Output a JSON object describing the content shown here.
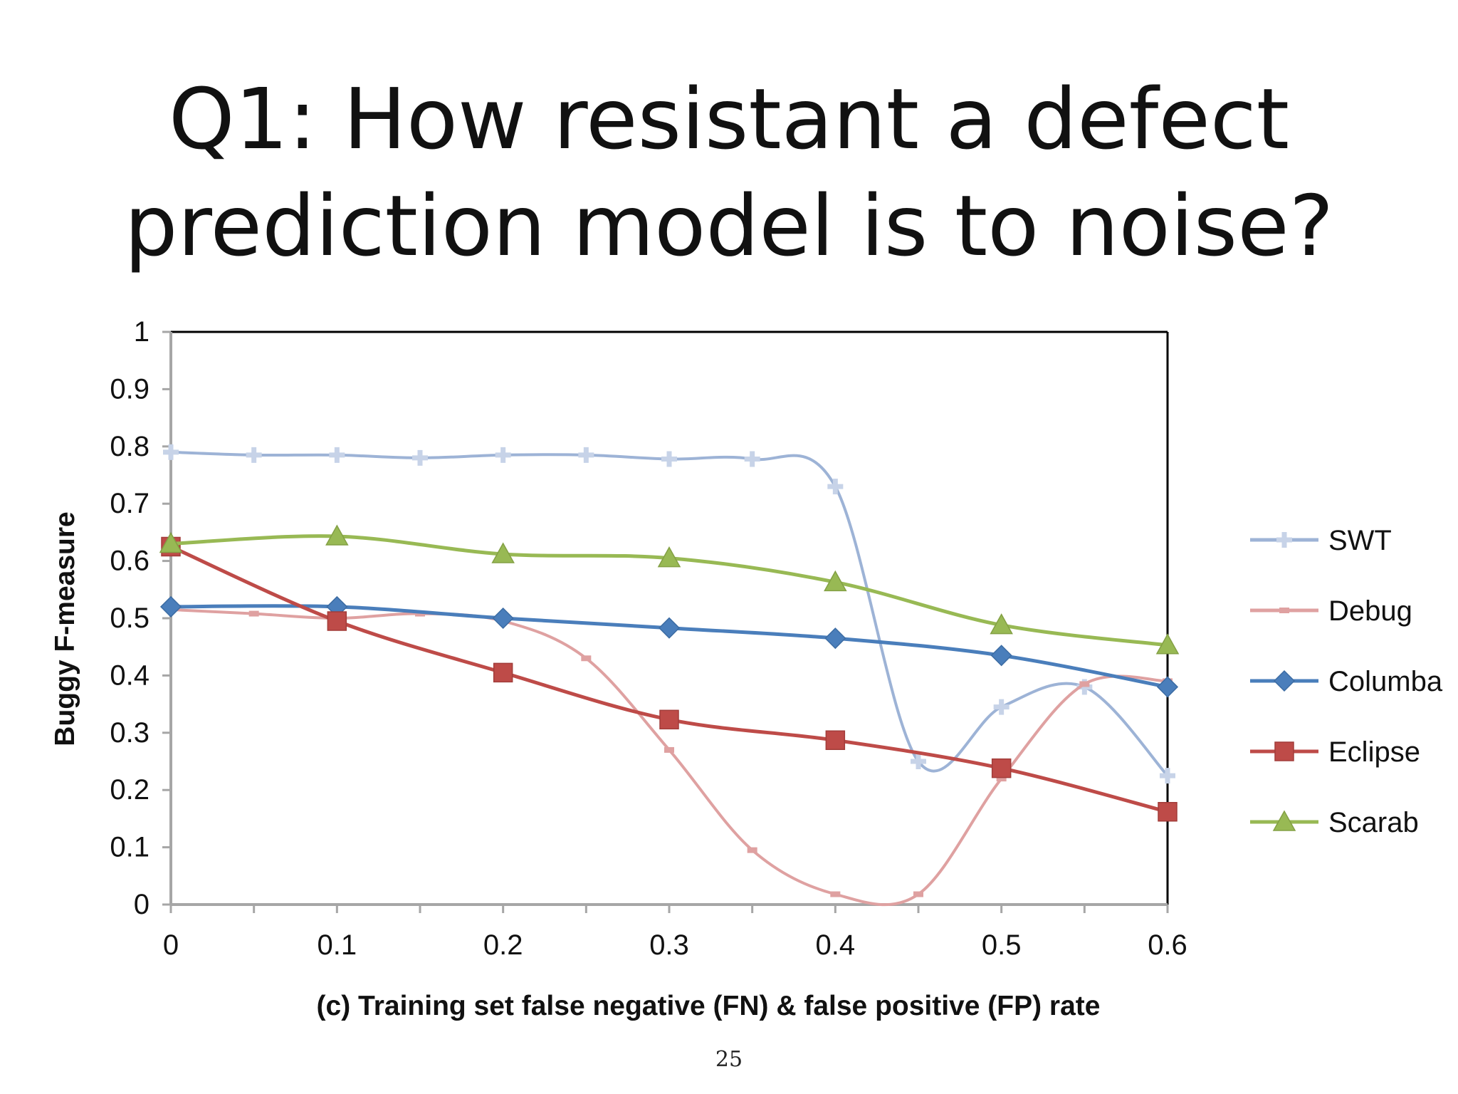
{
  "slide": {
    "title_line1": "Q1: How resistant a defect",
    "title_line2": "prediction model is to noise?",
    "page_number": "25"
  },
  "chart_data": {
    "type": "line",
    "title": "",
    "xlabel": "(c) Training set false negative (FN) & false positive (FP) rate",
    "ylabel": "Buggy F-measure",
    "xlim": [
      0,
      0.6
    ],
    "ylim": [
      0,
      1
    ],
    "xticks": [
      "0",
      "0.1",
      "0.2",
      "0.3",
      "0.4",
      "0.5",
      "0.6"
    ],
    "yticks": [
      "0",
      "0.1",
      "0.2",
      "0.3",
      "0.4",
      "0.5",
      "0.6",
      "0.7",
      "0.8",
      "0.9",
      "1"
    ],
    "grid": false,
    "legend_position": "right",
    "smooth": true,
    "series": [
      {
        "name": "SWT",
        "color": "#9db3d6",
        "marker": "plus",
        "x": [
          0,
          0.05,
          0.1,
          0.15,
          0.2,
          0.25,
          0.3,
          0.35,
          0.4,
          0.45,
          0.5,
          0.55,
          0.6
        ],
        "y": [
          0.79,
          0.785,
          0.785,
          0.78,
          0.785,
          0.785,
          0.778,
          0.778,
          0.73,
          0.25,
          0.345,
          0.38,
          0.225
        ]
      },
      {
        "name": "Debug",
        "color": "#dfa1a1",
        "marker": "dash",
        "x": [
          0,
          0.05,
          0.1,
          0.15,
          0.2,
          0.25,
          0.3,
          0.35,
          0.4,
          0.45,
          0.5,
          0.55,
          0.6
        ],
        "y": [
          0.515,
          0.508,
          0.5,
          0.508,
          0.495,
          0.43,
          0.27,
          0.095,
          0.018,
          0.018,
          0.22,
          0.385,
          0.39
        ]
      },
      {
        "name": "Columba",
        "color": "#4a7ebb",
        "marker": "diamond",
        "x": [
          0,
          0.1,
          0.2,
          0.3,
          0.4,
          0.5,
          0.6
        ],
        "y": [
          0.52,
          0.52,
          0.5,
          0.483,
          0.465,
          0.435,
          0.38
        ]
      },
      {
        "name": "Eclipse",
        "color": "#be4b48",
        "marker": "square",
        "x": [
          0,
          0.1,
          0.2,
          0.3,
          0.4,
          0.5,
          0.6
        ],
        "y": [
          0.625,
          0.495,
          0.405,
          0.323,
          0.287,
          0.238,
          0.162
        ]
      },
      {
        "name": "Scarab",
        "color": "#98b954",
        "marker": "triangle",
        "x": [
          0,
          0.1,
          0.2,
          0.3,
          0.4,
          0.5,
          0.6
        ],
        "y": [
          0.63,
          0.643,
          0.612,
          0.605,
          0.563,
          0.488,
          0.453
        ]
      }
    ]
  }
}
